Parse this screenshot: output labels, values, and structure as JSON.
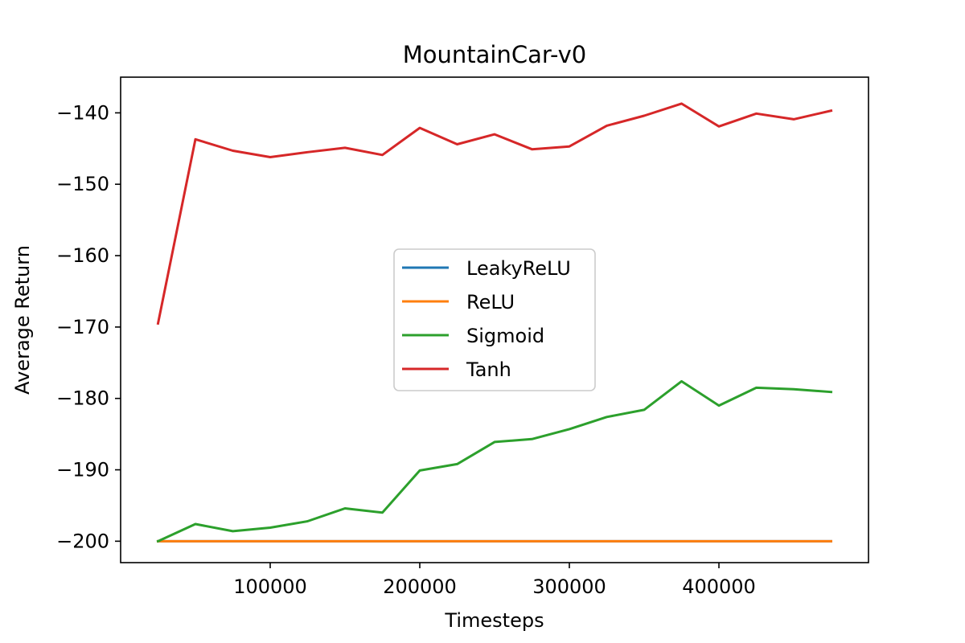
{
  "chart_data": {
    "type": "line",
    "title": "MountainCar-v0",
    "xlabel": "Timesteps",
    "ylabel": "Average Return",
    "xlim": [
      0,
      500000
    ],
    "ylim": [
      -203,
      -135
    ],
    "x_ticks": [
      100000,
      200000,
      300000,
      400000
    ],
    "y_ticks": [
      -140,
      -150,
      -160,
      -170,
      -180,
      -190,
      -200
    ],
    "x_tick_labels": [
      "100000",
      "200000",
      "300000",
      "400000"
    ],
    "y_tick_labels": [
      "−140",
      "−150",
      "−160",
      "−170",
      "−180",
      "−190",
      "−200"
    ],
    "grid": false,
    "legend_position": "center",
    "x": [
      25000,
      50000,
      75000,
      100000,
      125000,
      150000,
      175000,
      200000,
      225000,
      250000,
      275000,
      300000,
      325000,
      350000,
      375000,
      400000,
      425000,
      450000,
      475000
    ],
    "series": [
      {
        "name": "LeakyReLU",
        "color": "#1f77b4",
        "values": [
          -200,
          -200,
          -200,
          -200,
          -200,
          -200,
          -200,
          -200,
          -200,
          -200,
          -200,
          -200,
          -200,
          -200,
          -200,
          -200,
          -200,
          -200,
          -200
        ]
      },
      {
        "name": "ReLU",
        "color": "#ff7f0e",
        "values": [
          -200,
          -200,
          -200,
          -200,
          -200,
          -200,
          -200,
          -200,
          -200,
          -200,
          -200,
          -200,
          -200,
          -200,
          -200,
          -200,
          -200,
          -200,
          -200
        ]
      },
      {
        "name": "Sigmoid",
        "color": "#2ca02c",
        "values": [
          -200,
          -197.6,
          -198.6,
          -198.1,
          -197.2,
          -195.4,
          -196.0,
          -190.1,
          -189.2,
          -186.1,
          -185.7,
          -184.3,
          -182.6,
          -181.6,
          -177.6,
          -181.0,
          -178.5,
          -178.7,
          -179.1
        ]
      },
      {
        "name": "Tanh",
        "color": "#d62728",
        "values": [
          -169.5,
          -143.7,
          -145.3,
          -146.2,
          -145.5,
          -144.9,
          -145.9,
          -142.1,
          -144.4,
          -143.0,
          -145.1,
          -144.7,
          -141.8,
          -140.4,
          -138.7,
          -141.9,
          -140.1,
          -140.9,
          -139.7
        ]
      }
    ]
  }
}
